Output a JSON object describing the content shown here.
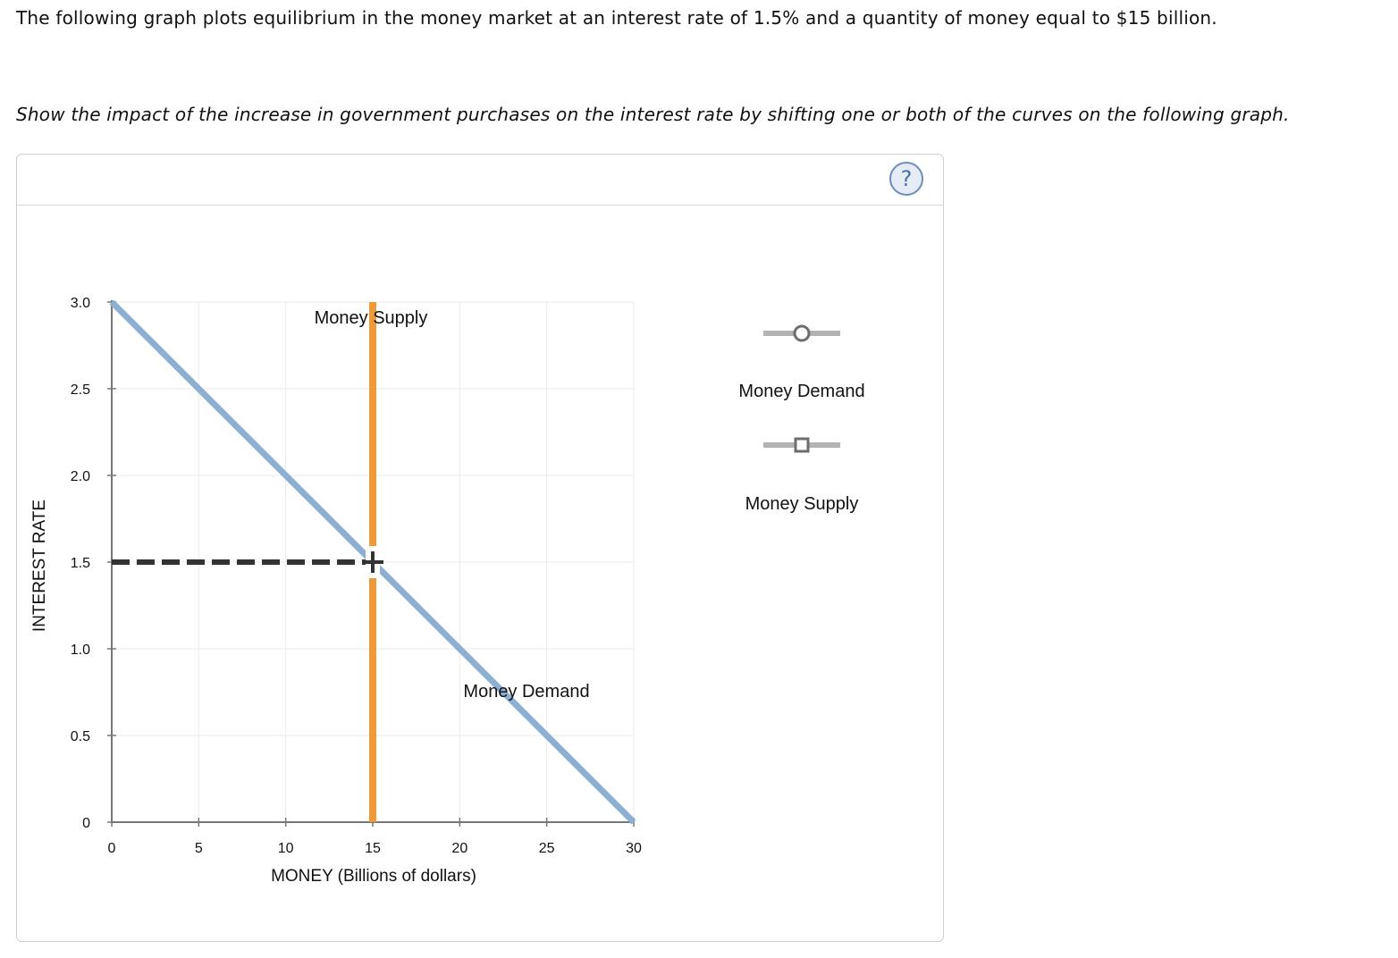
{
  "intro_text": "The following graph plots equilibrium in the money market at an interest rate of 1.5% and a quantity of money equal to $15 billion.",
  "instruction_text": "Show the impact of the increase in government purchases on the interest rate by shifting one or both of the curves on the following graph.",
  "help_icon": {
    "icon": "question-circle-icon",
    "label": "?"
  },
  "legend": [
    {
      "label": "Money Demand",
      "marker": "circle",
      "color": "#b3b3b3"
    },
    {
      "label": "Money Supply",
      "marker": "square",
      "color": "#b3b3b3"
    }
  ],
  "chart_data": {
    "type": "line",
    "xlabel": "MONEY (Billions of dollars)",
    "ylabel": "INTEREST RATE",
    "xlim": [
      0,
      30
    ],
    "ylim": [
      0,
      3.0
    ],
    "x_ticks": [
      "0",
      "5",
      "10",
      "15",
      "20",
      "25",
      "30"
    ],
    "x_tick_values": [
      0,
      5,
      10,
      15,
      20,
      25,
      30
    ],
    "y_ticks": [
      "0",
      "0.5",
      "1.0",
      "1.5",
      "2.0",
      "2.5",
      "3.0"
    ],
    "y_tick_values": [
      0,
      0.5,
      1.0,
      1.5,
      2.0,
      2.5,
      3.0
    ],
    "grid": true,
    "series": [
      {
        "name": "Money Demand",
        "color": "#8eafd4",
        "points": [
          [
            0,
            3.0
          ],
          [
            30,
            0
          ]
        ]
      },
      {
        "name": "Money Supply",
        "color": "#ef9a37",
        "points": [
          [
            15,
            0
          ],
          [
            15,
            3.0
          ]
        ]
      }
    ],
    "equilibrium": {
      "x": 15,
      "y": 1.5
    }
  }
}
